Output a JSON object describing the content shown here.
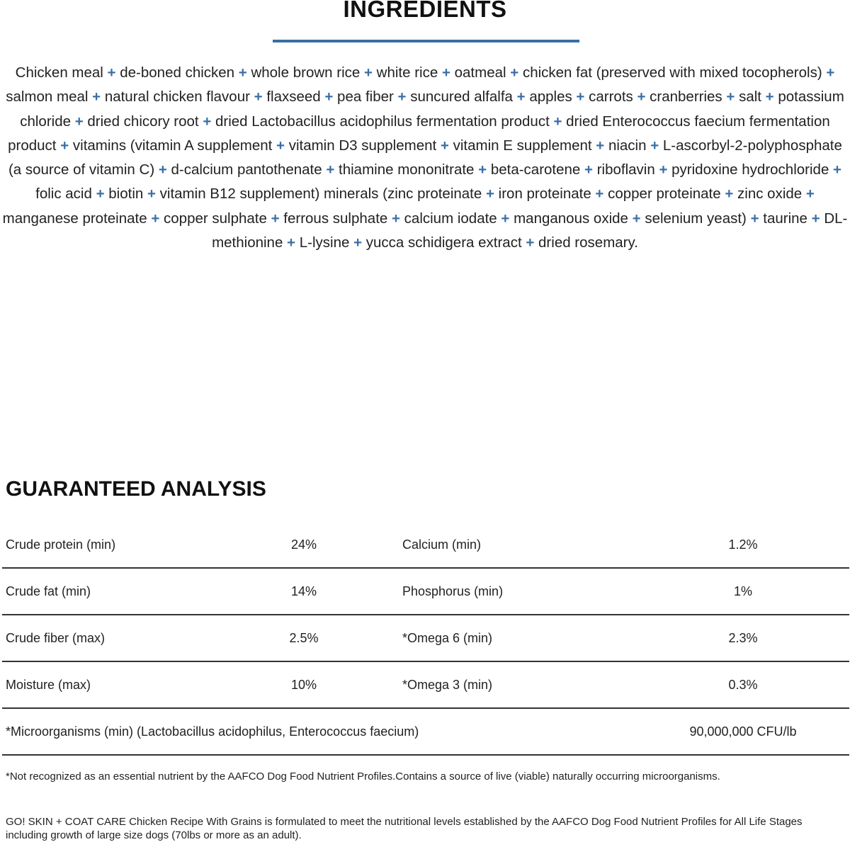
{
  "ingredients": {
    "title": "INGREDIENTS",
    "accent_color": "#3a6ea5",
    "items": [
      "Chicken meal",
      "de-boned chicken",
      "whole brown rice",
      "white rice",
      "oatmeal",
      "chicken fat (preserved with mixed tocopherols)",
      "salmon meal",
      "natural chicken flavour",
      "flaxseed",
      "pea fiber",
      "suncured alfalfa",
      "apples",
      "carrots",
      "cranberries",
      "salt",
      "potassium chloride",
      "dried chicory root",
      "dried Lactobacillus acidophilus fermentation product",
      "dried Enterococcus faecium fermentation product",
      "vitamins (vitamin A supplement",
      "vitamin D3 supplement",
      "vitamin E supplement",
      "niacin",
      "L-ascorbyl-2-polyphosphate (a source of vitamin C)",
      "d-calcium pantothenate",
      "thiamine mononitrate",
      "beta-carotene",
      "riboflavin",
      "pyridoxine hydrochloride",
      "folic acid",
      "biotin",
      "vitamin B12 supplement) minerals (zinc proteinate",
      "iron proteinate",
      "copper proteinate",
      "zinc oxide",
      "manganese proteinate",
      "copper sulphate",
      "ferrous sulphate",
      "calcium iodate",
      "manganous oxide",
      "selenium yeast)",
      "taurine",
      "DL-methionine",
      "L-lysine",
      "yucca schidigera extract",
      "dried rosemary."
    ]
  },
  "analysis": {
    "title": "GUARANTEED ANALYSIS",
    "rows": [
      {
        "l1": "Crude protein (min)",
        "v1": "24%",
        "l2": "Calcium (min)",
        "v2": "1.2%"
      },
      {
        "l1": "Crude fat (min)",
        "v1": "14%",
        "l2": "Phosphorus (min)",
        "v2": "1%"
      },
      {
        "l1": "Crude fiber (max)",
        "v1": "2.5%",
        "l2": "*Omega 6 (min)",
        "v2": "2.3%"
      },
      {
        "l1": "Moisture (max)",
        "v1": "10%",
        "l2": "*Omega 3 (min)",
        "v2": "0.3%"
      }
    ],
    "wide_row": {
      "label": "*Microorganisms (min) (Lactobacillus acidophilus, Enterococcus faecium)",
      "value": "90,000,000 CFU/lb"
    }
  },
  "footnotes": {
    "note1": "*Not recognized as an essential nutrient by the AAFCO Dog Food Nutrient Profiles.Contains a source of live (viable) naturally occurring microorganisms.",
    "note2": "GO! SKIN + COAT CARE Chicken Recipe With Grains is formulated to meet the nutritional levels established by the AAFCO Dog Food Nutrient Profiles for All Life Stages including growth of large size dogs (70lbs or more as an adult)."
  }
}
